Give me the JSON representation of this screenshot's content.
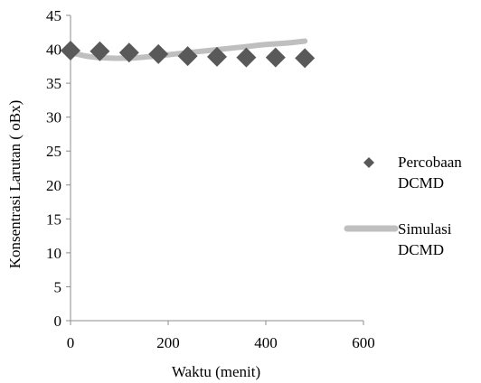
{
  "chart_data": {
    "type": "scatter",
    "xlabel": "Waktu (menit)",
    "ylabel": "Konsentrasi Larutan ( oBx)",
    "xlim": [
      0,
      600
    ],
    "ylim": [
      0,
      45
    ],
    "x_ticks": [
      0,
      200,
      400,
      600
    ],
    "y_ticks": [
      0,
      5,
      10,
      15,
      20,
      25,
      30,
      35,
      40,
      45
    ],
    "grid": false,
    "legend_position": "right",
    "series": [
      {
        "name": "Percobaan DCMD",
        "legend_lines": [
          "Percobaan",
          "DCMD"
        ],
        "kind": "markers",
        "marker": "diamond",
        "color": "#595959",
        "x": [
          0,
          60,
          120,
          180,
          240,
          300,
          360,
          420,
          480
        ],
        "y": [
          39.8,
          39.7,
          39.5,
          39.3,
          39.0,
          38.9,
          38.8,
          38.8,
          38.7
        ]
      },
      {
        "name": "Simulasi DCMD",
        "legend_lines": [
          "Simulasi",
          "DCMD"
        ],
        "kind": "line",
        "color": "#bfbfbf",
        "x": [
          0,
          40,
          80,
          120,
          160,
          200,
          240,
          280,
          320,
          360,
          400,
          440,
          480
        ],
        "y": [
          39.5,
          38.9,
          38.7,
          38.7,
          38.9,
          39.2,
          39.5,
          39.8,
          40.1,
          40.4,
          40.7,
          40.9,
          41.2
        ]
      }
    ]
  }
}
